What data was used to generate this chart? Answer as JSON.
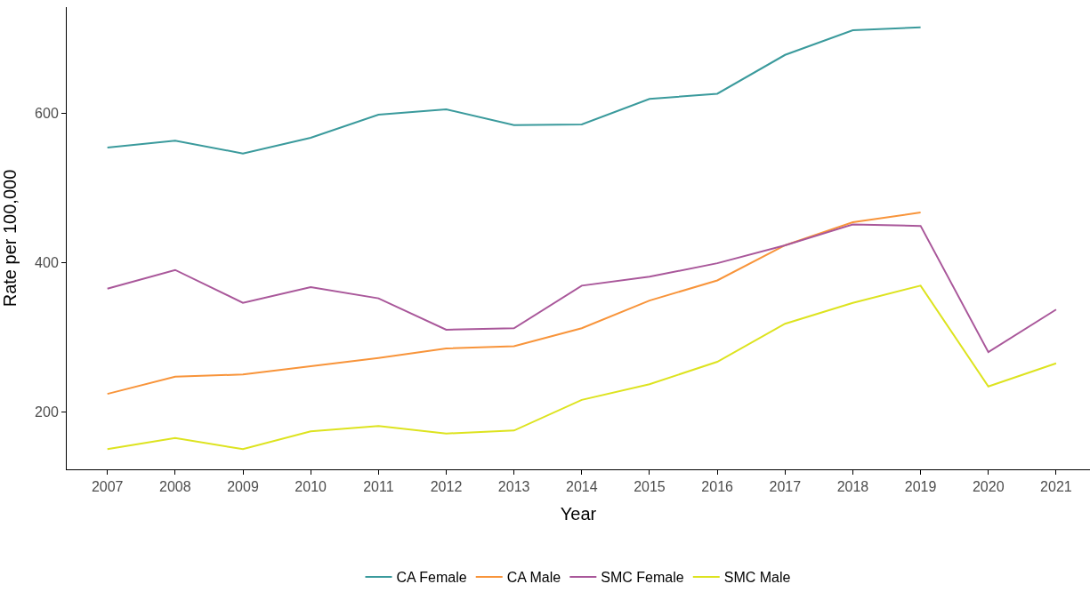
{
  "chart_data": {
    "type": "line",
    "xlabel": "Year",
    "ylabel": "Rate per 100,000",
    "x": [
      2007,
      2008,
      2009,
      2010,
      2011,
      2012,
      2013,
      2014,
      2015,
      2016,
      2017,
      2018,
      2019,
      2020,
      2021
    ],
    "xlim": [
      2006.4,
      2021.5
    ],
    "xticks": [
      2007,
      2008,
      2009,
      2010,
      2011,
      2012,
      2013,
      2014,
      2015,
      2016,
      2017,
      2018,
      2019,
      2020,
      2021
    ],
    "ylim": [
      123,
      742
    ],
    "yticks": [
      200,
      400,
      600
    ],
    "legend": "bottom",
    "marker": "none",
    "line_style": "solid",
    "series": [
      {
        "name": "CA Female",
        "color": "#3a9a9c",
        "values": [
          554,
          563,
          546,
          567,
          598,
          605,
          584,
          585,
          619,
          626,
          678,
          711,
          715,
          null,
          null
        ]
      },
      {
        "name": "CA Male",
        "color": "#f8943a",
        "values": [
          224,
          247,
          250,
          261,
          272,
          285,
          288,
          312,
          349,
          376,
          423,
          454,
          467,
          null,
          null
        ]
      },
      {
        "name": "SMC Female",
        "color": "#a9579a",
        "values": [
          365,
          390,
          346,
          367,
          352,
          310,
          312,
          369,
          381,
          399,
          423,
          451,
          449,
          280,
          337
        ]
      },
      {
        "name": "SMC Male",
        "color": "#dde31f",
        "values": [
          150,
          165,
          150,
          174,
          181,
          171,
          175,
          216,
          237,
          267,
          318,
          346,
          369,
          234,
          265
        ]
      }
    ]
  }
}
